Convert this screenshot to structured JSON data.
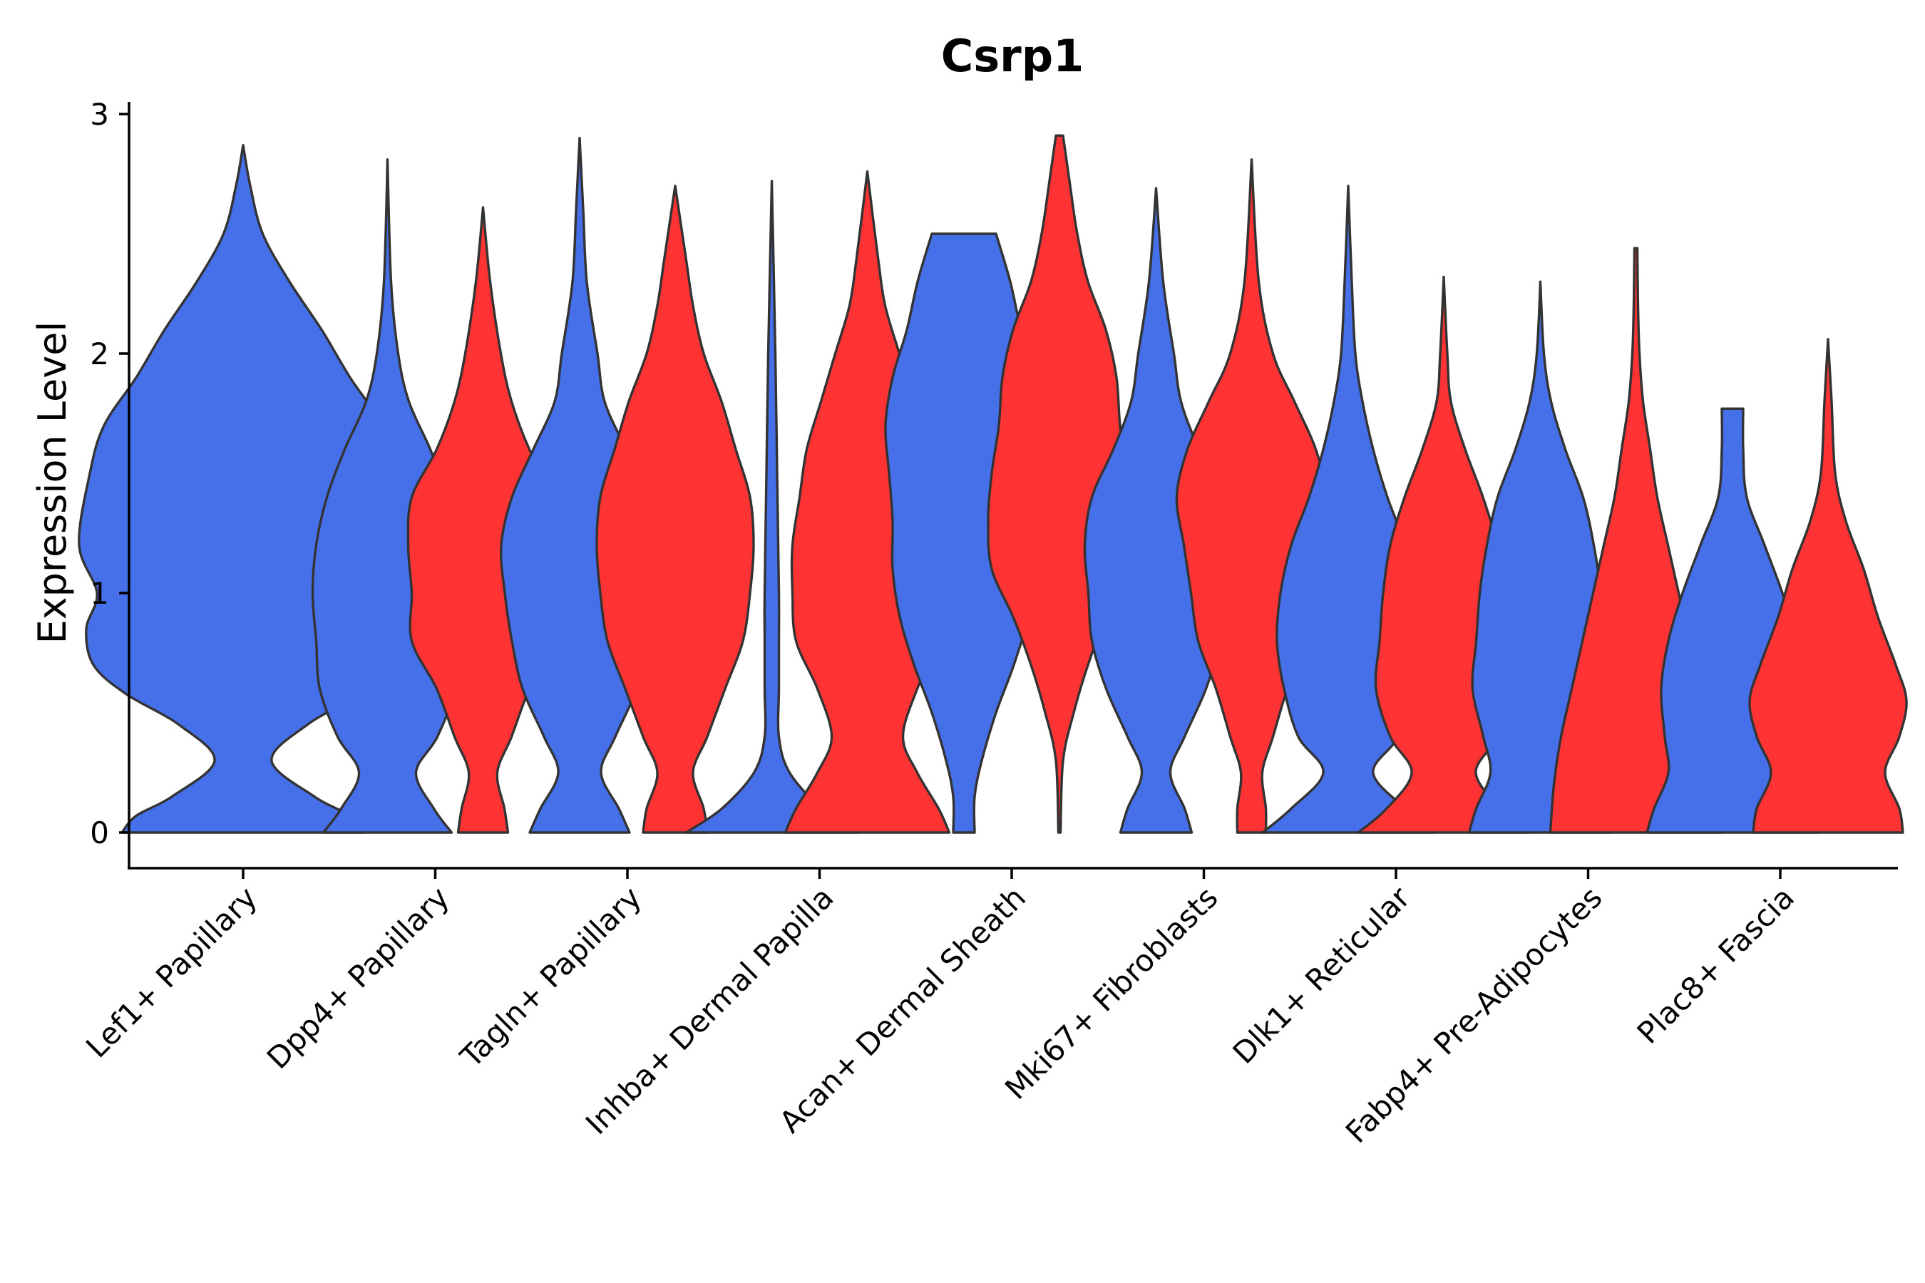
{
  "chart_data": {
    "type": "violin",
    "title": "Csrp1",
    "xlabel": "",
    "ylabel": "Expression Level",
    "ylim": [
      0,
      3
    ],
    "yticks": [
      0,
      1,
      2,
      3
    ],
    "legend": "none",
    "series_colors": {
      "blue": "#4570EA",
      "red": "#FF3333"
    },
    "categories": [
      "Lef1+ Papillary",
      "Dpp4+ Papillary",
      "Tagln+ Papillary",
      "Inhba+ Dermal Papilla",
      "Acan+ Dermal Sheath",
      "Mki67+ Fibroblasts",
      "Dlk1+ Reticular",
      "Fabp4+ Pre-Adipocytes",
      "Plac8+ Fascia"
    ],
    "violins": [
      {
        "category": "Lef1+ Papillary",
        "color": "blue",
        "max": 2.87,
        "profile": [
          [
            0,
            0.34
          ],
          [
            0.07,
            0.3
          ],
          [
            0.15,
            0.2
          ],
          [
            0.3,
            0.08
          ],
          [
            0.45,
            0.18
          ],
          [
            0.58,
            0.33
          ],
          [
            0.7,
            0.42
          ],
          [
            0.85,
            0.44
          ],
          [
            1.0,
            0.41
          ],
          [
            1.2,
            0.46
          ],
          [
            1.5,
            0.43
          ],
          [
            1.7,
            0.39
          ],
          [
            1.9,
            0.3
          ],
          [
            2.1,
            0.22
          ],
          [
            2.3,
            0.13
          ],
          [
            2.5,
            0.055
          ],
          [
            2.7,
            0.02
          ],
          [
            2.87,
            0.0
          ]
        ]
      },
      {
        "category": "Dpp4+ Papillary",
        "color": "blue",
        "max": 2.81,
        "profile": [
          [
            0,
            0.18
          ],
          [
            0.1,
            0.13
          ],
          [
            0.25,
            0.08
          ],
          [
            0.4,
            0.14
          ],
          [
            0.6,
            0.19
          ],
          [
            0.8,
            0.2
          ],
          [
            1.0,
            0.21
          ],
          [
            1.2,
            0.2
          ],
          [
            1.4,
            0.17
          ],
          [
            1.6,
            0.12
          ],
          [
            1.8,
            0.06
          ],
          [
            2.0,
            0.03
          ],
          [
            2.3,
            0.01
          ],
          [
            2.81,
            0.0
          ]
        ]
      },
      {
        "category": "Dpp4+ Papillary",
        "color": "red",
        "max": 2.61,
        "profile": [
          [
            0,
            0.07
          ],
          [
            0.1,
            0.06
          ],
          [
            0.25,
            0.04
          ],
          [
            0.4,
            0.08
          ],
          [
            0.6,
            0.13
          ],
          [
            0.8,
            0.2
          ],
          [
            1.0,
            0.2
          ],
          [
            1.2,
            0.21
          ],
          [
            1.4,
            0.2
          ],
          [
            1.6,
            0.13
          ],
          [
            1.8,
            0.08
          ],
          [
            2.0,
            0.05
          ],
          [
            2.3,
            0.02
          ],
          [
            2.61,
            0.0
          ]
        ]
      },
      {
        "category": "Tagln+ Papillary",
        "color": "blue",
        "max": 2.9,
        "profile": [
          [
            0,
            0.14
          ],
          [
            0.1,
            0.11
          ],
          [
            0.25,
            0.06
          ],
          [
            0.4,
            0.1
          ],
          [
            0.6,
            0.16
          ],
          [
            0.8,
            0.19
          ],
          [
            1.0,
            0.21
          ],
          [
            1.2,
            0.22
          ],
          [
            1.4,
            0.19
          ],
          [
            1.6,
            0.13
          ],
          [
            1.8,
            0.07
          ],
          [
            2.0,
            0.05
          ],
          [
            2.3,
            0.02
          ],
          [
            2.6,
            0.01
          ],
          [
            2.9,
            0.0
          ]
        ]
      },
      {
        "category": "Tagln+ Papillary",
        "color": "red",
        "max": 2.7,
        "profile": [
          [
            0,
            0.09
          ],
          [
            0.1,
            0.08
          ],
          [
            0.25,
            0.05
          ],
          [
            0.4,
            0.09
          ],
          [
            0.6,
            0.14
          ],
          [
            0.8,
            0.19
          ],
          [
            1.0,
            0.21
          ],
          [
            1.2,
            0.22
          ],
          [
            1.4,
            0.21
          ],
          [
            1.6,
            0.17
          ],
          [
            1.8,
            0.13
          ],
          [
            2.0,
            0.08
          ],
          [
            2.2,
            0.05
          ],
          [
            2.4,
            0.03
          ],
          [
            2.7,
            0.0
          ]
        ]
      },
      {
        "category": "Inhba+ Dermal Papilla",
        "color": "blue",
        "max": 2.72,
        "profile": [
          [
            0,
            0.24
          ],
          [
            0.1,
            0.14
          ],
          [
            0.25,
            0.05
          ],
          [
            0.4,
            0.02
          ],
          [
            0.6,
            0.02
          ],
          [
            0.8,
            0.02
          ],
          [
            1.0,
            0.02
          ],
          [
            1.5,
            0.015
          ],
          [
            2.0,
            0.01
          ],
          [
            2.72,
            0.0
          ]
        ]
      },
      {
        "category": "Inhba+ Dermal Papilla",
        "color": "red",
        "max": 2.76,
        "profile": [
          [
            0,
            0.23
          ],
          [
            0.1,
            0.2
          ],
          [
            0.25,
            0.14
          ],
          [
            0.4,
            0.1
          ],
          [
            0.6,
            0.14
          ],
          [
            0.8,
            0.2
          ],
          [
            1.0,
            0.21
          ],
          [
            1.2,
            0.21
          ],
          [
            1.4,
            0.19
          ],
          [
            1.6,
            0.17
          ],
          [
            1.8,
            0.13
          ],
          [
            2.0,
            0.09
          ],
          [
            2.2,
            0.05
          ],
          [
            2.4,
            0.03
          ],
          [
            2.76,
            0.0
          ]
        ]
      },
      {
        "category": "Acan+ Dermal Sheath",
        "color": "blue",
        "max": 2.5,
        "profile": [
          [
            0,
            0.03
          ],
          [
            0.15,
            0.03
          ],
          [
            0.3,
            0.05
          ],
          [
            0.5,
            0.09
          ],
          [
            0.7,
            0.14
          ],
          [
            0.9,
            0.18
          ],
          [
            1.1,
            0.2
          ],
          [
            1.3,
            0.2
          ],
          [
            1.5,
            0.21
          ],
          [
            1.7,
            0.22
          ],
          [
            1.9,
            0.2
          ],
          [
            2.1,
            0.16
          ],
          [
            2.3,
            0.13
          ],
          [
            2.5,
            0.09
          ]
        ]
      },
      {
        "category": "Acan+ Dermal Sheath",
        "color": "red",
        "max": 2.91,
        "profile": [
          [
            0,
            0.003
          ],
          [
            0.3,
            0.01
          ],
          [
            0.5,
            0.04
          ],
          [
            0.7,
            0.08
          ],
          [
            0.9,
            0.13
          ],
          [
            1.1,
            0.19
          ],
          [
            1.3,
            0.2
          ],
          [
            1.5,
            0.19
          ],
          [
            1.7,
            0.17
          ],
          [
            1.9,
            0.16
          ],
          [
            2.1,
            0.13
          ],
          [
            2.3,
            0.08
          ],
          [
            2.5,
            0.05
          ],
          [
            2.7,
            0.03
          ],
          [
            2.91,
            0.01
          ]
        ]
      },
      {
        "category": "Mki67+ Fibroblasts",
        "color": "blue",
        "max": 2.69,
        "profile": [
          [
            0,
            0.1
          ],
          [
            0.1,
            0.08
          ],
          [
            0.25,
            0.04
          ],
          [
            0.4,
            0.08
          ],
          [
            0.6,
            0.14
          ],
          [
            0.8,
            0.18
          ],
          [
            1.0,
            0.19
          ],
          [
            1.2,
            0.2
          ],
          [
            1.4,
            0.18
          ],
          [
            1.6,
            0.12
          ],
          [
            1.8,
            0.07
          ],
          [
            2.0,
            0.05
          ],
          [
            2.3,
            0.02
          ],
          [
            2.69,
            0.0
          ]
        ]
      },
      {
        "category": "Mki67+ Fibroblasts",
        "color": "red",
        "max": 2.81,
        "profile": [
          [
            0,
            0.04
          ],
          [
            0.1,
            0.04
          ],
          [
            0.25,
            0.03
          ],
          [
            0.4,
            0.06
          ],
          [
            0.6,
            0.1
          ],
          [
            0.8,
            0.15
          ],
          [
            1.0,
            0.17
          ],
          [
            1.2,
            0.19
          ],
          [
            1.4,
            0.21
          ],
          [
            1.6,
            0.18
          ],
          [
            1.8,
            0.12
          ],
          [
            2.0,
            0.06
          ],
          [
            2.3,
            0.02
          ],
          [
            2.81,
            0.0
          ]
        ]
      },
      {
        "category": "Dlk1+ Reticular",
        "color": "blue",
        "max": 2.7,
        "profile": [
          [
            0,
            0.24
          ],
          [
            0.1,
            0.16
          ],
          [
            0.25,
            0.07
          ],
          [
            0.4,
            0.14
          ],
          [
            0.6,
            0.18
          ],
          [
            0.8,
            0.2
          ],
          [
            1.0,
            0.19
          ],
          [
            1.2,
            0.16
          ],
          [
            1.4,
            0.11
          ],
          [
            1.6,
            0.07
          ],
          [
            1.8,
            0.04
          ],
          [
            2.0,
            0.02
          ],
          [
            2.3,
            0.01
          ],
          [
            2.7,
            0.0
          ]
        ]
      },
      {
        "category": "Dlk1+ Reticular",
        "color": "red",
        "max": 2.32,
        "profile": [
          [
            0,
            0.24
          ],
          [
            0.1,
            0.16
          ],
          [
            0.25,
            0.09
          ],
          [
            0.4,
            0.15
          ],
          [
            0.6,
            0.19
          ],
          [
            0.8,
            0.18
          ],
          [
            1.0,
            0.17
          ],
          [
            1.2,
            0.15
          ],
          [
            1.4,
            0.11
          ],
          [
            1.6,
            0.06
          ],
          [
            1.8,
            0.02
          ],
          [
            2.0,
            0.01
          ],
          [
            2.32,
            0.0
          ]
        ]
      },
      {
        "category": "Fabp4+ Pre-Adipocytes",
        "color": "blue",
        "max": 2.3,
        "profile": [
          [
            0,
            0.2
          ],
          [
            0.1,
            0.18
          ],
          [
            0.25,
            0.14
          ],
          [
            0.4,
            0.16
          ],
          [
            0.6,
            0.19
          ],
          [
            0.8,
            0.18
          ],
          [
            1.0,
            0.17
          ],
          [
            1.2,
            0.15
          ],
          [
            1.4,
            0.12
          ],
          [
            1.6,
            0.07
          ],
          [
            1.8,
            0.03
          ],
          [
            2.0,
            0.01
          ],
          [
            2.3,
            0.0
          ]
        ]
      },
      {
        "category": "Fabp4+ Pre-Adipocytes",
        "color": "red",
        "max": 2.44,
        "profile": [
          [
            0,
            0.24
          ],
          [
            0.2,
            0.23
          ],
          [
            0.4,
            0.21
          ],
          [
            0.6,
            0.18
          ],
          [
            0.8,
            0.15
          ],
          [
            1.0,
            0.12
          ],
          [
            1.2,
            0.09
          ],
          [
            1.4,
            0.06
          ],
          [
            1.6,
            0.04
          ],
          [
            1.8,
            0.02
          ],
          [
            2.0,
            0.01
          ],
          [
            2.2,
            0.006
          ],
          [
            2.44,
            0.004
          ]
        ]
      },
      {
        "category": "Plac8+ Fascia",
        "color": "blue",
        "max": 1.77,
        "profile": [
          [
            0,
            0.24
          ],
          [
            0.1,
            0.22
          ],
          [
            0.25,
            0.18
          ],
          [
            0.4,
            0.19
          ],
          [
            0.6,
            0.2
          ],
          [
            0.8,
            0.18
          ],
          [
            1.0,
            0.14
          ],
          [
            1.2,
            0.09
          ],
          [
            1.4,
            0.04
          ],
          [
            1.6,
            0.03
          ],
          [
            1.77,
            0.03
          ]
        ]
      },
      {
        "category": "Plac8+ Fascia",
        "color": "red",
        "max": 2.06,
        "profile": [
          [
            0,
            0.21
          ],
          [
            0.1,
            0.2
          ],
          [
            0.25,
            0.16
          ],
          [
            0.4,
            0.2
          ],
          [
            0.55,
            0.22
          ],
          [
            0.7,
            0.19
          ],
          [
            0.9,
            0.14
          ],
          [
            1.1,
            0.1
          ],
          [
            1.3,
            0.05
          ],
          [
            1.5,
            0.02
          ],
          [
            1.8,
            0.01
          ],
          [
            2.06,
            0.0
          ]
        ]
      }
    ]
  }
}
